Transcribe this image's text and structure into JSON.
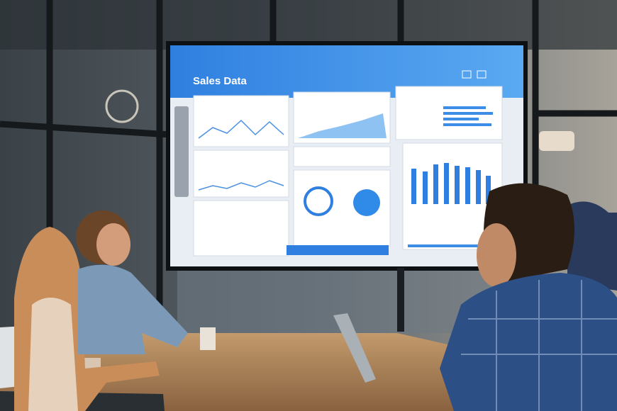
{
  "screen": {
    "title": "Sales Data"
  }
}
